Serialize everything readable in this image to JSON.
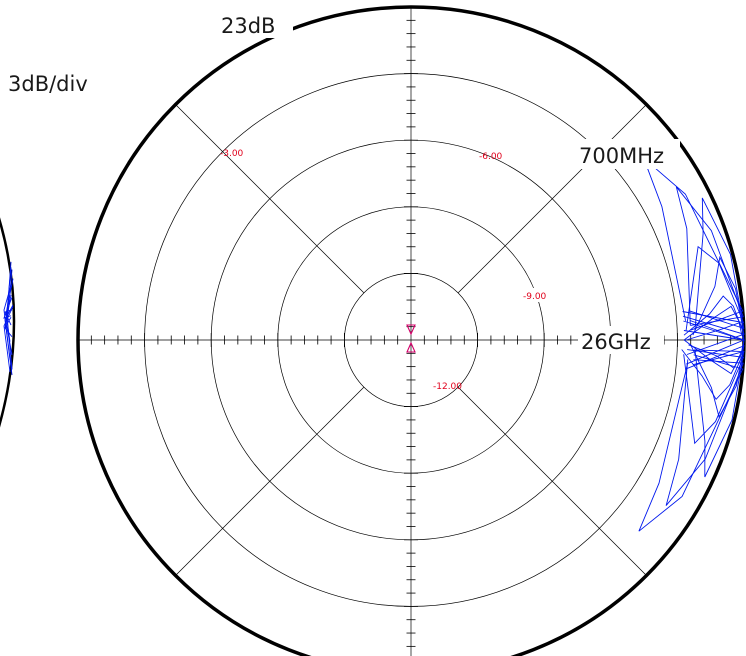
{
  "annotations": {
    "top_reference": "23dB",
    "scale": "3dB/div",
    "start_freq": "700MHz",
    "stop_freq": "26GHz"
  },
  "colors": {
    "trace": "#0018ee",
    "grid": "#000000",
    "circle_labels": "#e0001b",
    "marker": "#d4006a"
  },
  "chart_data": {
    "type": "polar",
    "title": "",
    "scale_per_div": 3,
    "reference_level": 23,
    "circle_labels": [
      "-3.00",
      "-6.00",
      "-9.00",
      "-12.00"
    ],
    "frequency_range": [
      "700MHz",
      "26GHz"
    ],
    "grid": true,
    "series": [
      {
        "values": [
          [
            20.4,
            0
          ],
          [
            22.0,
            2
          ],
          [
            22.8,
            3
          ],
          [
            22.9,
            1
          ],
          [
            23.0,
            0
          ]
        ]
      },
      {
        "values": [
          [
            20.3,
            1
          ],
          [
            21.5,
            5
          ],
          [
            22.2,
            8
          ],
          [
            22.6,
            6
          ],
          [
            23.0,
            1
          ]
        ]
      },
      {
        "values": [
          [
            20.5,
            -1
          ],
          [
            21.8,
            -3
          ],
          [
            22.6,
            -5
          ],
          [
            22.9,
            -2
          ],
          [
            23.0,
            0
          ]
        ]
      },
      {
        "values": [
          [
            20.2,
            -2
          ],
          [
            21.2,
            -7
          ],
          [
            22.0,
            -11
          ],
          [
            22.5,
            -8
          ],
          [
            23.0,
            -2
          ]
        ]
      },
      {
        "values": [
          [
            20.4,
            2
          ],
          [
            21.0,
            12
          ],
          [
            21.6,
            18
          ],
          [
            22.3,
            14
          ],
          [
            23.0,
            3
          ]
        ]
      },
      {
        "values": [
          [
            20.3,
            -3
          ],
          [
            20.9,
            -13
          ],
          [
            21.6,
            -20
          ],
          [
            22.2,
            -15
          ],
          [
            23.0,
            -3
          ]
        ]
      },
      {
        "values": [
          [
            20.6,
            3
          ],
          [
            21.4,
            22
          ],
          [
            21.8,
            30
          ],
          [
            22.4,
            20
          ],
          [
            23.0,
            4
          ]
        ]
      },
      {
        "values": [
          [
            20.5,
            -4
          ],
          [
            21.2,
            -24
          ],
          [
            21.7,
            -33
          ],
          [
            22.3,
            -22
          ],
          [
            23.0,
            -4
          ]
        ]
      },
      {
        "values": [
          [
            20.7,
            1
          ],
          [
            21.9,
            10
          ],
          [
            22.4,
            15
          ],
          [
            22.8,
            9
          ],
          [
            23.0,
            1
          ]
        ]
      },
      {
        "values": [
          [
            20.6,
            -1
          ],
          [
            21.7,
            -9
          ],
          [
            22.3,
            -14
          ],
          [
            22.8,
            -8
          ],
          [
            23.0,
            -1
          ]
        ]
      },
      {
        "values": [
          [
            20.4,
            4
          ],
          [
            20.8,
            28
          ],
          [
            21.3,
            38
          ],
          [
            22.0,
            28
          ],
          [
            23.0,
            5
          ]
        ]
      },
      {
        "values": [
          [
            20.5,
            -5
          ],
          [
            20.9,
            -30
          ],
          [
            21.4,
            -40
          ],
          [
            22.1,
            -30
          ],
          [
            23.0,
            -5
          ]
        ]
      },
      {
        "values": [
          [
            20.3,
            0
          ],
          [
            21.6,
            4
          ],
          [
            22.5,
            6
          ],
          [
            22.95,
            2
          ],
          [
            23.0,
            0
          ]
        ]
      },
      {
        "values": [
          [
            20.3,
            0
          ],
          [
            21.6,
            -4
          ],
          [
            22.5,
            -6
          ],
          [
            22.95,
            -2
          ],
          [
            23.0,
            0
          ]
        ]
      },
      {
        "values": [
          [
            20.8,
            2
          ],
          [
            22.0,
            20
          ],
          [
            22.6,
            26
          ],
          [
            22.9,
            15
          ],
          [
            23.0,
            2
          ]
        ]
      },
      {
        "values": [
          [
            20.8,
            -2
          ],
          [
            22.0,
            -19
          ],
          [
            22.6,
            -25
          ],
          [
            22.9,
            -14
          ],
          [
            23.0,
            -2
          ]
        ]
      }
    ]
  }
}
